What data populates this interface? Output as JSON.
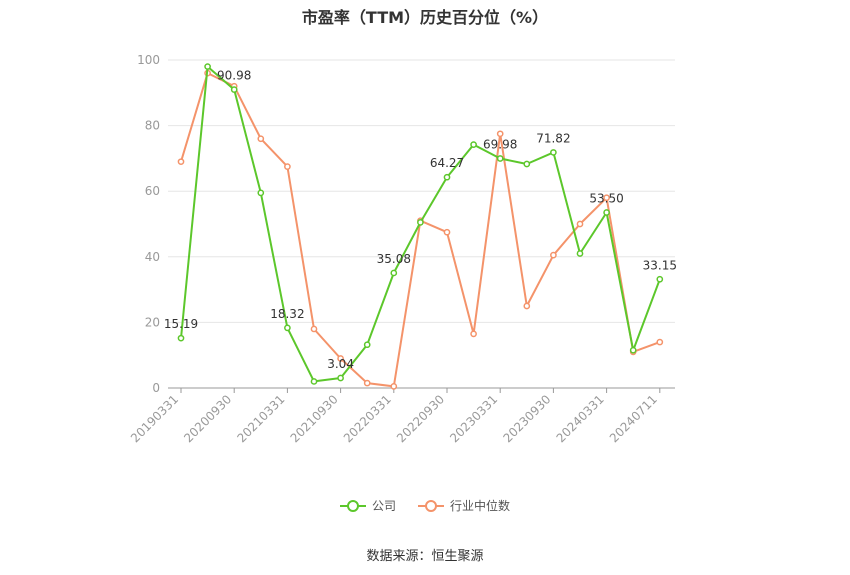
{
  "chart_data": {
    "type": "line",
    "title": "市盈率（TTM）历史百分位（%）",
    "ylim": [
      0,
      100
    ],
    "y_ticks": [
      0,
      20,
      40,
      60,
      80,
      100
    ],
    "x_tick_labels": [
      "20190331",
      "20200930",
      "20210331",
      "20210930",
      "20220331",
      "20220930",
      "20230331",
      "20230930",
      "20240331",
      "20240711"
    ],
    "grid": true,
    "legend_position": "bottom",
    "series": [
      {
        "name": "公司",
        "color": "#5cc72b",
        "values": [
          15.19,
          98.0,
          90.98,
          59.5,
          18.32,
          2.0,
          3.04,
          13.2,
          35.08,
          50.5,
          64.27,
          74.2,
          69.98,
          68.3,
          71.82,
          41.0,
          53.5,
          11.5,
          33.15
        ],
        "labels": [
          "15.19",
          "",
          "90.98",
          "",
          "18.32",
          "",
          "3.04",
          "",
          "35.08",
          "",
          "64.27",
          "",
          "69.98",
          "",
          "71.82",
          "",
          "53.50",
          "",
          "33.15"
        ]
      },
      {
        "name": "行业中位数",
        "color": "#f4936a",
        "values": [
          69.0,
          96.0,
          92.0,
          76.0,
          67.5,
          18.0,
          9.0,
          1.5,
          0.5,
          51.0,
          47.5,
          16.5,
          77.5,
          25.0,
          40.5,
          50.0,
          58.0,
          11.0,
          14.0
        ]
      }
    ]
  },
  "source": "数据来源：恒生聚源"
}
